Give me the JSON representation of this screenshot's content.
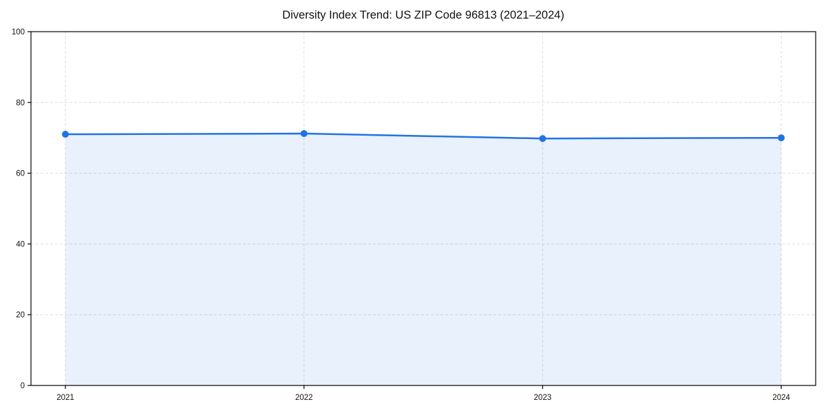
{
  "chart_data": {
    "type": "area",
    "title": "Diversity Index Trend: US ZIP Code 96813 (2021–2024)",
    "x": [
      2021,
      2022,
      2023,
      2024
    ],
    "series": [
      {
        "name": "Diversity Index",
        "values": [
          71.0,
          71.2,
          69.8,
          70.0
        ]
      }
    ],
    "xlabel": "",
    "ylabel": "",
    "ylim": [
      0,
      100
    ],
    "yticks": [
      0,
      20,
      40,
      60,
      80,
      100
    ],
    "xticks": [
      "2021",
      "2022",
      "2023",
      "2024"
    ],
    "grid": true,
    "grid_style": "dashed",
    "legend": false,
    "marker": "circle",
    "colors": {
      "line": "#2272e4",
      "marker": "#2272e4",
      "fill": "#2272e4",
      "fill_opacity": 0.1,
      "grid": "#dedede",
      "axis_border": "#000000",
      "text": "#111111",
      "background": "#ffffff"
    }
  }
}
